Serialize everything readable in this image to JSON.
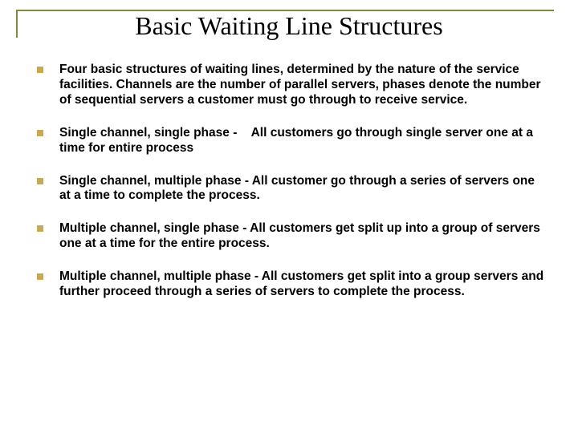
{
  "colors": {
    "rule": "#7b8f3a",
    "bullet": "#c9a94a",
    "text": "#000000",
    "background": "#ffffff"
  },
  "title": "Basic Waiting Line Structures",
  "items": [
    {
      "lead": "",
      "rest": "Four basic structures of waiting lines, determined by the nature of the service facilities. Channels are the number of parallel servers, phases denote the number of sequential servers a customer must go through to receive service."
    },
    {
      "lead": "Single channel, single phase -",
      "rest": "    All customers go through single server one at a time for entire process"
    },
    {
      "lead": "Single channel, multiple phase -",
      "rest": " All customer go through a series of servers one at a time to complete the process."
    },
    {
      "lead": "Multiple channel, single phase -",
      "rest": "  All customers get split up into a group of servers one at a time for the entire process."
    },
    {
      "lead": "Multiple channel, multiple phase -",
      "rest": " All customers get split into a group servers and further proceed through a series of servers to complete the process."
    }
  ],
  "typography": {
    "title_font": "Times New Roman",
    "title_size_pt": 32,
    "body_font": "Arial",
    "body_size_pt": 15.5,
    "body_weight": "bold"
  }
}
